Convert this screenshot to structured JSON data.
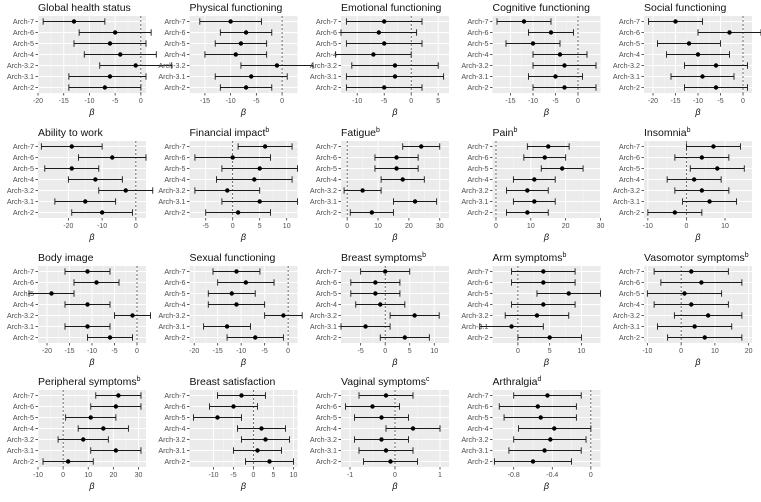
{
  "figure": {
    "xlabel": "β",
    "categories": [
      "Arch-7",
      "Arch-6",
      "Arch-5",
      "Arch-4",
      "Arch-3.2",
      "Arch-3.1",
      "Arch-2"
    ]
  },
  "chart_data": [
    {
      "type": "forest",
      "title": "Global health status",
      "superscript": "",
      "xlabel": "β",
      "categories": [
        "Arch-7",
        "Arch-6",
        "Arch-5",
        "Arch-4",
        "Arch-3.2",
        "Arch-3.1",
        "Arch-2"
      ],
      "estimates": [
        -13,
        -5,
        -6,
        -4,
        -1,
        -6,
        -7
      ],
      "lower": [
        -19,
        -12,
        -13,
        -11,
        -8,
        -14,
        -14
      ],
      "upper": [
        -7,
        2,
        1,
        3,
        6,
        1,
        0
      ],
      "xlim": [
        -20,
        1
      ],
      "xticks": [
        -20,
        -15,
        -10,
        -5,
        0
      ]
    },
    {
      "type": "forest",
      "title": "Physical functioning",
      "superscript": "",
      "xlabel": "β",
      "categories": [
        "Arch-7",
        "Arch-6",
        "Arch-5",
        "Arch-4",
        "Arch-3.2",
        "Arch-3.1",
        "Arch-2"
      ],
      "estimates": [
        -10,
        -7,
        -8,
        -9,
        -1,
        -6,
        -7
      ],
      "lower": [
        -16,
        -12,
        -13,
        -15,
        -8,
        -13,
        -12
      ],
      "upper": [
        -4,
        -2,
        -3,
        -3,
        6,
        1,
        -2
      ],
      "xlim": [
        -18,
        3
      ],
      "xticks": [
        -15,
        -10,
        -5,
        0
      ]
    },
    {
      "type": "forest",
      "title": "Emotional functioning",
      "superscript": "",
      "xlabel": "β",
      "categories": [
        "Arch-7",
        "Arch-6",
        "Arch-5",
        "Arch-4",
        "Arch-3.2",
        "Arch-3.1",
        "Arch-2"
      ],
      "estimates": [
        -5,
        -6,
        -5,
        -7,
        -3,
        -3,
        -5
      ],
      "lower": [
        -12,
        -13,
        -12,
        -14,
        -11,
        -12,
        -12
      ],
      "upper": [
        2,
        1,
        2,
        0,
        5,
        6,
        2
      ],
      "xlim": [
        -13,
        7
      ],
      "xticks": [
        -10,
        -5,
        0,
        5
      ]
    },
    {
      "type": "forest",
      "title": "Cognitive functioning",
      "superscript": "",
      "xlabel": "β",
      "categories": [
        "Arch-7",
        "Arch-6",
        "Arch-5",
        "Arch-4",
        "Arch-3.2",
        "Arch-3.1",
        "Arch-2"
      ],
      "estimates": [
        -12,
        -6,
        -10,
        -4,
        -3,
        -5,
        -3
      ],
      "lower": [
        -18,
        -11,
        -16,
        -10,
        -10,
        -11,
        -10
      ],
      "upper": [
        -6,
        -1,
        -4,
        2,
        4,
        1,
        4
      ],
      "xlim": [
        -19,
        5
      ],
      "xticks": [
        -15,
        -10,
        -5,
        0
      ]
    },
    {
      "type": "forest",
      "title": "Social functioning",
      "superscript": "",
      "xlabel": "β",
      "categories": [
        "Arch-7",
        "Arch-6",
        "Arch-5",
        "Arch-4",
        "Arch-3.2",
        "Arch-3.1",
        "Arch-2"
      ],
      "estimates": [
        -15,
        -3,
        -12,
        -10,
        -6,
        -9,
        -6
      ],
      "lower": [
        -21,
        -10,
        -19,
        -17,
        -13,
        -16,
        -13
      ],
      "upper": [
        -9,
        4,
        -5,
        -3,
        1,
        -2,
        1
      ],
      "xlim": [
        -22,
        2
      ],
      "xticks": [
        -20,
        -15,
        -10,
        -5,
        0
      ]
    },
    {
      "type": "forest",
      "title": "Ability to work",
      "superscript": "",
      "xlabel": "β",
      "categories": [
        "Arch-7",
        "Arch-6",
        "Arch-5",
        "Arch-4",
        "Arch-3.2",
        "Arch-3.1",
        "Arch-2"
      ],
      "estimates": [
        -19,
        -7,
        -19,
        -12,
        -3,
        -15,
        -10
      ],
      "lower": [
        -28,
        -17,
        -27,
        -20,
        -11,
        -24,
        -19
      ],
      "upper": [
        -10,
        3,
        -11,
        -4,
        5,
        -6,
        -1
      ],
      "xlim": [
        -29,
        3
      ],
      "xticks": [
        -20,
        -10,
        0
      ]
    },
    {
      "type": "forest",
      "title": "Financial impact",
      "superscript": "b",
      "xlabel": "β",
      "categories": [
        "Arch-7",
        "Arch-6",
        "Arch-5",
        "Arch-4",
        "Arch-3.2",
        "Arch-3.1",
        "Arch-2"
      ],
      "estimates": [
        6,
        0,
        5,
        4,
        -1,
        5,
        1
      ],
      "lower": [
        1,
        -7,
        -2,
        -3,
        -7,
        -2,
        -5
      ],
      "upper": [
        11,
        7,
        12,
        11,
        5,
        12,
        7
      ],
      "xlim": [
        -8,
        12
      ],
      "xticks": [
        -5,
        0,
        5,
        10
      ]
    },
    {
      "type": "forest",
      "title": "Fatigue",
      "superscript": "b",
      "xlabel": "β",
      "categories": [
        "Arch-7",
        "Arch-6",
        "Arch-5",
        "Arch-4",
        "Arch-3.2",
        "Arch-3.1",
        "Arch-2"
      ],
      "estimates": [
        24,
        16,
        16,
        18,
        5,
        22,
        8
      ],
      "lower": [
        18,
        9,
        9,
        11,
        -1,
        15,
        1
      ],
      "upper": [
        30,
        23,
        23,
        25,
        11,
        29,
        15
      ],
      "xlim": [
        -2,
        33
      ],
      "xticks": [
        0,
        10,
        20,
        30
      ]
    },
    {
      "type": "forest",
      "title": "Pain",
      "superscript": "b",
      "xlabel": "β",
      "categories": [
        "Arch-7",
        "Arch-6",
        "Arch-5",
        "Arch-4",
        "Arch-3.2",
        "Arch-3.1",
        "Arch-2"
      ],
      "estimates": [
        15,
        14,
        19,
        11,
        9,
        11,
        9
      ],
      "lower": [
        9,
        8,
        13,
        5,
        3,
        5,
        3
      ],
      "upper": [
        21,
        20,
        25,
        17,
        15,
        17,
        15
      ],
      "xlim": [
        -1,
        30
      ],
      "xticks": [
        0,
        10,
        20,
        30
      ]
    },
    {
      "type": "forest",
      "title": "Insomnia",
      "superscript": "b",
      "xlabel": "β",
      "categories": [
        "Arch-7",
        "Arch-6",
        "Arch-5",
        "Arch-4",
        "Arch-3.2",
        "Arch-3.1",
        "Arch-2"
      ],
      "estimates": [
        7,
        4,
        8,
        2,
        4,
        6,
        -3
      ],
      "lower": [
        0,
        -3,
        1,
        -5,
        -3,
        -1,
        -10
      ],
      "upper": [
        14,
        11,
        15,
        9,
        11,
        13,
        4
      ],
      "xlim": [
        -11,
        17
      ],
      "xticks": [
        -10,
        0,
        10
      ]
    },
    {
      "type": "forest",
      "title": "Body image",
      "superscript": "",
      "xlabel": "β",
      "categories": [
        "Arch-7",
        "Arch-6",
        "Arch-5",
        "Arch-4",
        "Arch-3.2",
        "Arch-3.1",
        "Arch-2"
      ],
      "estimates": [
        -11,
        -9,
        -19,
        -11,
        -1,
        -11,
        -6
      ],
      "lower": [
        -16,
        -14,
        -24,
        -16,
        -5,
        -16,
        -11
      ],
      "upper": [
        -6,
        -4,
        -14,
        -6,
        3,
        -6,
        -1
      ],
      "xlim": [
        -22,
        2
      ],
      "xticks": [
        -20,
        -15,
        -10,
        -5,
        0
      ]
    },
    {
      "type": "forest",
      "title": "Sexual functioning",
      "superscript": "",
      "xlabel": "β",
      "categories": [
        "Arch-7",
        "Arch-6",
        "Arch-5",
        "Arch-4",
        "Arch-3.2",
        "Arch-3.1",
        "Arch-2"
      ],
      "estimates": [
        -11,
        -9,
        -12,
        -11,
        -1,
        -13,
        -7
      ],
      "lower": [
        -16,
        -15,
        -17,
        -17,
        -5,
        -18,
        -13
      ],
      "upper": [
        -6,
        -3,
        -7,
        -5,
        3,
        -8,
        -1
      ],
      "xlim": [
        -21,
        2
      ],
      "xticks": [
        -20,
        -15,
        -10,
        -5,
        0
      ]
    },
    {
      "type": "forest",
      "title": "Breast symptoms",
      "superscript": "b",
      "xlabel": "β",
      "categories": [
        "Arch-7",
        "Arch-6",
        "Arch-5",
        "Arch-4",
        "Arch-3.2",
        "Arch-3.1",
        "Arch-2"
      ],
      "estimates": [
        0,
        -2,
        -2,
        -1,
        6,
        -4,
        4
      ],
      "lower": [
        -5,
        -7,
        -7,
        -6,
        1,
        -9,
        -1
      ],
      "upper": [
        5,
        3,
        3,
        4,
        11,
        1,
        9
      ],
      "xlim": [
        -9,
        13
      ],
      "xticks": [
        -5,
        0,
        5,
        10
      ]
    },
    {
      "type": "forest",
      "title": "Arm symptoms",
      "superscript": "b",
      "xlabel": "β",
      "categories": [
        "Arch-7",
        "Arch-6",
        "Arch-5",
        "Arch-4",
        "Arch-3.2",
        "Arch-3.1",
        "Arch-2"
      ],
      "estimates": [
        4,
        4,
        8,
        4,
        3,
        -1,
        5
      ],
      "lower": [
        -1,
        -1,
        3,
        -1,
        -2,
        -6,
        0
      ],
      "upper": [
        9,
        9,
        13,
        9,
        8,
        4,
        10
      ],
      "xlim": [
        -4,
        13
      ],
      "xticks": [
        0,
        5,
        10
      ]
    },
    {
      "type": "forest",
      "title": "Vasomotor symptoms",
      "superscript": "b",
      "xlabel": "β",
      "categories": [
        "Arch-7",
        "Arch-6",
        "Arch-5",
        "Arch-4",
        "Arch-3.2",
        "Arch-3.1",
        "Arch-2"
      ],
      "estimates": [
        3,
        6,
        1,
        3,
        8,
        4,
        7
      ],
      "lower": [
        -8,
        -6,
        -10,
        -8,
        -2,
        -7,
        -4
      ],
      "upper": [
        14,
        18,
        12,
        14,
        18,
        15,
        18
      ],
      "xlim": [
        -11,
        21
      ],
      "xticks": [
        -10,
        0,
        10,
        20
      ]
    },
    {
      "type": "forest",
      "title": "Peripheral symptoms",
      "superscript": "b",
      "xlabel": "β",
      "categories": [
        "Arch-7",
        "Arch-6",
        "Arch-5",
        "Arch-4",
        "Arch-3.2",
        "Arch-3.1",
        "Arch-2"
      ],
      "estimates": [
        22,
        21,
        11,
        16,
        8,
        21,
        2
      ],
      "lower": [
        13,
        11,
        1,
        6,
        -2,
        11,
        -8
      ],
      "upper": [
        31,
        31,
        21,
        26,
        18,
        31,
        12
      ],
      "xlim": [
        -10,
        33
      ],
      "xticks": [
        -10,
        0,
        10,
        20,
        30
      ]
    },
    {
      "type": "forest",
      "title": "Breast satisfaction",
      "superscript": "",
      "xlabel": "β",
      "categories": [
        "Arch-7",
        "Arch-6",
        "Arch-5",
        "Arch-4",
        "Arch-3.2",
        "Arch-3.1",
        "Arch-2"
      ],
      "estimates": [
        -3,
        -5,
        -9,
        2,
        3,
        1,
        4
      ],
      "lower": [
        -9,
        -11,
        -15,
        -4,
        -3,
        -5,
        -2
      ],
      "upper": [
        3,
        1,
        -3,
        8,
        9,
        7,
        10
      ],
      "xlim": [
        -16,
        11
      ],
      "xticks": [
        -10,
        -5,
        0,
        5,
        10
      ]
    },
    {
      "type": "forest",
      "title": "Vaginal symptoms",
      "superscript": "c",
      "xlabel": "β",
      "categories": [
        "Arch-7",
        "Arch-6",
        "Arch-5",
        "Arch-4",
        "Arch-3.2",
        "Arch-3.1",
        "Arch-2"
      ],
      "estimates": [
        -0.2,
        -0.5,
        -0.3,
        0.4,
        -0.3,
        -0.2,
        -0.1
      ],
      "lower": [
        -0.8,
        -1.1,
        -0.9,
        -0.2,
        -0.9,
        -0.8,
        -0.7
      ],
      "upper": [
        0.4,
        0.1,
        0.3,
        1.0,
        0.3,
        0.4,
        0.5
      ],
      "xlim": [
        -1.2,
        1.2
      ],
      "xticks": [
        -1,
        0,
        1
      ]
    },
    {
      "type": "forest",
      "title": "Arthralgia",
      "superscript": "d",
      "xlabel": "β",
      "categories": [
        "Arch-7",
        "Arch-6",
        "Arch-5",
        "Arch-4",
        "Arch-3.2",
        "Arch-3.1",
        "Arch-2"
      ],
      "estimates": [
        -0.45,
        -0.55,
        -0.52,
        -0.38,
        -0.42,
        -0.48,
        -0.6
      ],
      "lower": [
        -0.8,
        -0.95,
        -0.9,
        -0.75,
        -0.8,
        -0.85,
        -1.0
      ],
      "upper": [
        -0.1,
        -0.15,
        -0.15,
        0.0,
        -0.05,
        -0.1,
        -0.2
      ],
      "xlim": [
        -1.02,
        0.1
      ],
      "xticks": [
        -0.8,
        -0.4,
        0.0
      ]
    }
  ]
}
